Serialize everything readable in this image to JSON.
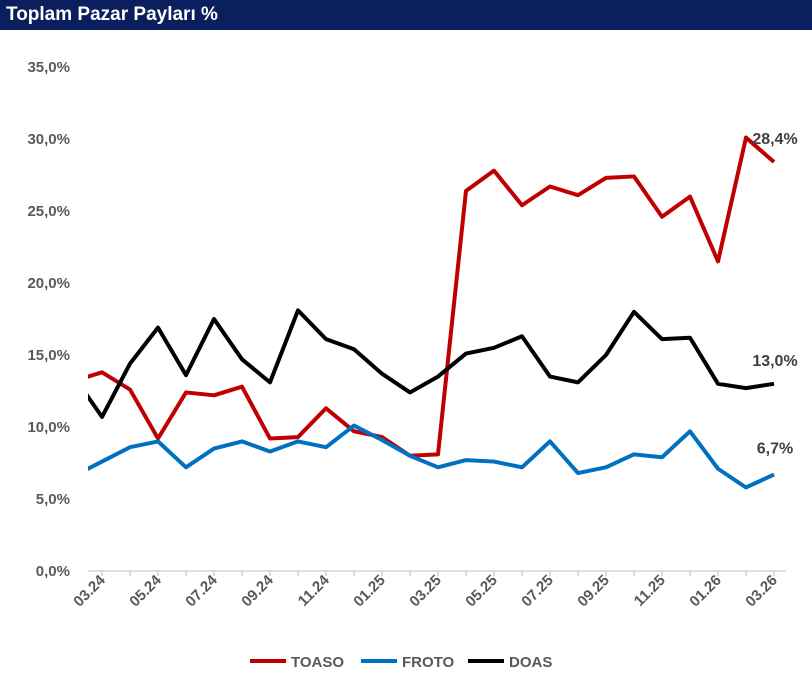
{
  "title": "Toplam Pazar Payları %",
  "chart_data": {
    "type": "line",
    "title": "Toplam Pazar Payları %",
    "xlabel": "",
    "ylabel": "",
    "ylim": [
      0,
      35
    ],
    "y_ticks": [
      "0,0%",
      "5,0%",
      "10,0%",
      "15,0%",
      "20,0%",
      "25,0%",
      "30,0%",
      "35,0%"
    ],
    "y_tick_values": [
      0,
      5,
      10,
      15,
      20,
      25,
      30,
      35
    ],
    "grid": false,
    "legend_position": "bottom",
    "x": [
      "02.24",
      "03.24",
      "04.24",
      "05.24",
      "06.24",
      "07.24",
      "08.24",
      "09.24",
      "10.24",
      "11.24",
      "12.24",
      "01.25",
      "02.25",
      "03.25",
      "04.25",
      "05.25",
      "06.25",
      "07.25",
      "08.25",
      "09.25",
      "10.25",
      "11.25",
      "12.25",
      "01.26",
      "02.26",
      "03.26"
    ],
    "x_tick_labels": [
      "03.24",
      "05.24",
      "07.24",
      "09.24",
      "11.24",
      "01.25",
      "03.25",
      "05.25",
      "07.25",
      "09.25",
      "11.25",
      "01.26",
      "03.26"
    ],
    "series": [
      {
        "name": "TOASO",
        "color": "#c00000",
        "values": [
          13.2,
          13.8,
          12.6,
          9.2,
          12.4,
          12.2,
          12.8,
          9.2,
          9.3,
          11.3,
          9.7,
          9.3,
          8.0,
          8.1,
          26.4,
          27.8,
          25.4,
          26.7,
          26.1,
          27.3,
          27.4,
          24.6,
          26.0,
          21.5,
          30.1,
          28.4
        ],
        "end_label": "28,4%"
      },
      {
        "name": "FROTO",
        "color": "#0070c0",
        "values": [
          6.6,
          7.6,
          8.6,
          9.0,
          7.2,
          8.5,
          9.0,
          8.3,
          9.0,
          8.6,
          10.1,
          9.1,
          8.0,
          7.2,
          7.7,
          7.6,
          7.2,
          9.0,
          6.8,
          7.2,
          8.1,
          7.9,
          9.7,
          7.1,
          5.8,
          6.7
        ],
        "end_label": "6,7%"
      },
      {
        "name": "DOAS",
        "color": "#000000",
        "values": [
          13.5,
          10.7,
          14.4,
          16.9,
          13.6,
          17.5,
          14.7,
          13.1,
          18.1,
          16.1,
          15.4,
          13.7,
          12.4,
          13.5,
          15.1,
          15.5,
          16.3,
          13.5,
          13.1,
          15.0,
          18.0,
          16.1,
          16.2,
          13.0,
          12.7,
          13.0
        ],
        "end_label": "13,0%"
      }
    ]
  }
}
